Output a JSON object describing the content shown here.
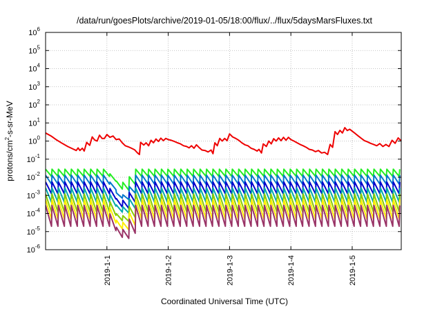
{
  "chart_data": {
    "type": "line",
    "title": "/data/run/goesPlots/archive/2019-01-05/18:00/flux/../flux/5daysMarsFluxes.txt",
    "xlabel": "Coordinated Universal Time (UTC)",
    "ylabel_parts": [
      "protons/cm",
      "2",
      "-s-sr-MeV"
    ],
    "yscale": "log",
    "ylim": [
      1e-06,
      1000000.0
    ],
    "xlim": [
      0.0,
      5.8
    ],
    "grid": true,
    "y_ticks": [
      {
        "mant": "10",
        "exp": "-6",
        "value": 1e-06
      },
      {
        "mant": "10",
        "exp": "-5",
        "value": 1e-05
      },
      {
        "mant": "10",
        "exp": "-4",
        "value": 0.0001
      },
      {
        "mant": "10",
        "exp": "-3",
        "value": 0.001
      },
      {
        "mant": "10",
        "exp": "-2",
        "value": 0.01
      },
      {
        "mant": "10",
        "exp": "-1",
        "value": 0.1
      },
      {
        "mant": "10",
        "exp": "0",
        "value": 1
      },
      {
        "mant": "10",
        "exp": "1",
        "value": 10
      },
      {
        "mant": "10",
        "exp": "2",
        "value": 100
      },
      {
        "mant": "10",
        "exp": "3",
        "value": 1000
      },
      {
        "mant": "10",
        "exp": "4",
        "value": 10000
      },
      {
        "mant": "10",
        "exp": "5",
        "value": 100000
      },
      {
        "mant": "10",
        "exp": "6",
        "value": 1000000
      }
    ],
    "x_ticks": [
      {
        "label": "2019-1-1",
        "value": 1.0
      },
      {
        "label": "2019-1-2",
        "value": 2.0
      },
      {
        "label": "2019-1-3",
        "value": 3.0
      },
      {
        "label": "2019-1-4",
        "value": 4.0
      },
      {
        "label": "2019-1-5",
        "value": 5.0
      }
    ],
    "series": [
      {
        "color": "#ee0000",
        "points": [
          [
            0,
            2.8
          ],
          [
            0.09,
            1.9
          ],
          [
            0.18,
            1.15
          ],
          [
            0.27,
            0.75
          ],
          [
            0.36,
            0.5
          ],
          [
            0.45,
            0.36
          ],
          [
            0.5,
            0.3
          ],
          [
            0.53,
            0.42
          ],
          [
            0.56,
            0.3
          ],
          [
            0.6,
            0.4
          ],
          [
            0.63,
            0.28
          ],
          [
            0.67,
            0.85
          ],
          [
            0.72,
            0.58
          ],
          [
            0.76,
            1.7
          ],
          [
            0.8,
            1.15
          ],
          [
            0.84,
            1.0
          ],
          [
            0.88,
            2.1
          ],
          [
            0.92,
            1.4
          ],
          [
            0.96,
            1.4
          ],
          [
            1.0,
            2.3
          ],
          [
            1.05,
            1.6
          ],
          [
            1.1,
            1.9
          ],
          [
            1.15,
            1.2
          ],
          [
            1.2,
            1.3
          ],
          [
            1.25,
            0.8
          ],
          [
            1.3,
            0.55
          ],
          [
            1.35,
            0.48
          ],
          [
            1.4,
            0.4
          ],
          [
            1.45,
            0.33
          ],
          [
            1.5,
            0.22
          ],
          [
            1.53,
            0.18
          ],
          [
            1.55,
            0.85
          ],
          [
            1.6,
            0.6
          ],
          [
            1.64,
            0.8
          ],
          [
            1.68,
            0.55
          ],
          [
            1.72,
            1.1
          ],
          [
            1.76,
            0.8
          ],
          [
            1.8,
            1.3
          ],
          [
            1.84,
            0.95
          ],
          [
            1.88,
            1.45
          ],
          [
            1.92,
            1.05
          ],
          [
            1.96,
            1.4
          ],
          [
            2.0,
            1.2
          ],
          [
            2.05,
            1.1
          ],
          [
            2.1,
            0.95
          ],
          [
            2.15,
            0.8
          ],
          [
            2.2,
            0.7
          ],
          [
            2.25,
            0.55
          ],
          [
            2.3,
            0.5
          ],
          [
            2.34,
            0.42
          ],
          [
            2.38,
            0.55
          ],
          [
            2.42,
            0.4
          ],
          [
            2.46,
            0.62
          ],
          [
            2.5,
            0.45
          ],
          [
            2.55,
            0.32
          ],
          [
            2.6,
            0.3
          ],
          [
            2.65,
            0.25
          ],
          [
            2.7,
            0.32
          ],
          [
            2.73,
            0.2
          ],
          [
            2.76,
            0.8
          ],
          [
            2.8,
            0.55
          ],
          [
            2.84,
            1.4
          ],
          [
            2.88,
            1.0
          ],
          [
            2.92,
            1.4
          ],
          [
            2.96,
            1.05
          ],
          [
            3.0,
            2.5
          ],
          [
            3.05,
            1.7
          ],
          [
            3.1,
            1.4
          ],
          [
            3.15,
            1.1
          ],
          [
            3.2,
            0.8
          ],
          [
            3.25,
            0.62
          ],
          [
            3.3,
            0.55
          ],
          [
            3.35,
            0.4
          ],
          [
            3.4,
            0.35
          ],
          [
            3.45,
            0.28
          ],
          [
            3.48,
            0.35
          ],
          [
            3.52,
            0.22
          ],
          [
            3.55,
            0.7
          ],
          [
            3.6,
            0.5
          ],
          [
            3.64,
            1.0
          ],
          [
            3.68,
            0.7
          ],
          [
            3.72,
            1.35
          ],
          [
            3.76,
            1.0
          ],
          [
            3.8,
            1.5
          ],
          [
            3.84,
            1.05
          ],
          [
            3.88,
            1.6
          ],
          [
            3.92,
            1.1
          ],
          [
            3.96,
            1.6
          ],
          [
            4.0,
            1.2
          ],
          [
            4.05,
            1.0
          ],
          [
            4.1,
            0.8
          ],
          [
            4.15,
            0.65
          ],
          [
            4.2,
            0.55
          ],
          [
            4.25,
            0.45
          ],
          [
            4.3,
            0.35
          ],
          [
            4.35,
            0.32
          ],
          [
            4.4,
            0.26
          ],
          [
            4.45,
            0.3
          ],
          [
            4.5,
            0.22
          ],
          [
            4.55,
            0.24
          ],
          [
            4.6,
            0.18
          ],
          [
            4.64,
            0.65
          ],
          [
            4.68,
            0.45
          ],
          [
            4.72,
            3.3
          ],
          [
            4.76,
            2.3
          ],
          [
            4.8,
            3.9
          ],
          [
            4.84,
            2.8
          ],
          [
            4.88,
            5.5
          ],
          [
            4.92,
            3.8
          ],
          [
            4.96,
            4.5
          ],
          [
            5.0,
            3.5
          ],
          [
            5.05,
            2.6
          ],
          [
            5.1,
            1.9
          ],
          [
            5.15,
            1.4
          ],
          [
            5.2,
            1.05
          ],
          [
            5.25,
            0.9
          ],
          [
            5.3,
            0.75
          ],
          [
            5.35,
            0.65
          ],
          [
            5.4,
            0.55
          ],
          [
            5.45,
            0.72
          ],
          [
            5.5,
            0.5
          ],
          [
            5.55,
            0.65
          ],
          [
            5.6,
            0.5
          ],
          [
            5.65,
            1.1
          ],
          [
            5.7,
            0.75
          ],
          [
            5.75,
            1.5
          ],
          [
            5.8,
            1.0
          ]
        ]
      },
      {
        "color": "#22ee22",
        "sawtooth": {
          "peak_base": 0.028,
          "trough_ratio": 0.4,
          "period": 0.105,
          "dip_start": 1.0,
          "dip_end": 1.45,
          "dip_peak": 0.005,
          "dip_min": 0.0018
        }
      },
      {
        "color": "#0077cc",
        "sawtooth": {
          "peak_base": 0.013,
          "trough_ratio": 0.32,
          "period": 0.105,
          "dip_start": 1.0,
          "dip_end": 1.45,
          "dip_peak": 0.001,
          "dip_min": 0.00055
        }
      },
      {
        "color": "#0000cc",
        "sawtooth": {
          "peak_base": 0.0055,
          "trough_ratio": 0.22,
          "period": 0.105,
          "dip_start": 1.0,
          "dip_end": 1.45,
          "dip_peak": 0.0005,
          "dip_min": 0.00018
        }
      },
      {
        "color": "#00aaaa",
        "sawtooth": {
          "peak_base": 0.0026,
          "trough_ratio": 0.16,
          "period": 0.105,
          "dip_start": 1.0,
          "dip_end": 1.45,
          "dip_peak": 0.00022,
          "dip_min": 0.0001
        }
      },
      {
        "color": "#88cc00",
        "sawtooth": {
          "peak_base": 0.0012,
          "trough_ratio": 0.1,
          "period": 0.105,
          "dip_start": 1.0,
          "dip_end": 1.45,
          "dip_peak": 7e-05,
          "dip_min": 3.5e-05
        }
      },
      {
        "color": "#ffee00",
        "sawtooth": {
          "peak_base": 0.0006,
          "trough_ratio": 0.08,
          "period": 0.105,
          "dip_start": 1.0,
          "dip_end": 1.45,
          "dip_peak": 3e-05,
          "dip_min": 1.2e-05
        }
      },
      {
        "color": "#993366",
        "sawtooth": {
          "peak_base": 0.00028,
          "trough_ratio": 0.07,
          "period": 0.105,
          "dip_start": 1.0,
          "dip_end": 1.45,
          "dip_peak": 1.2e-05,
          "dip_min": 4e-06
        }
      }
    ]
  }
}
